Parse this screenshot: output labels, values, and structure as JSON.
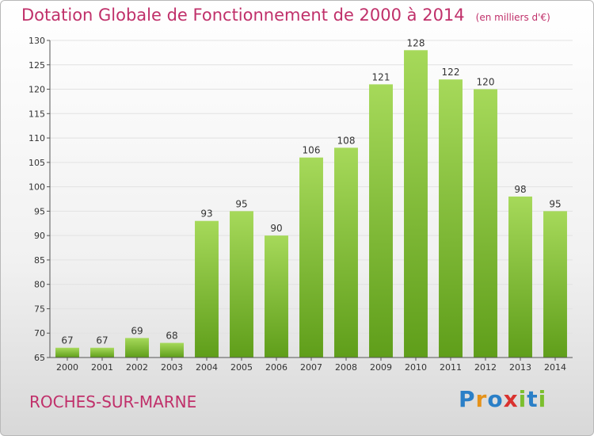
{
  "chart_data": {
    "type": "bar",
    "title": "Dotation Globale de Fonctionnement de 2000 à 2014",
    "subtitle": "(en milliers d'€)",
    "xlabel": "",
    "ylabel": "",
    "categories": [
      "2000",
      "2001",
      "2002",
      "2003",
      "2004",
      "2005",
      "2006",
      "2007",
      "2008",
      "2009",
      "2010",
      "2011",
      "2012",
      "2013",
      "2014"
    ],
    "values": [
      67,
      67,
      69,
      68,
      93,
      95,
      90,
      106,
      108,
      121,
      128,
      122,
      120,
      98,
      95
    ],
    "ylim": [
      65,
      130
    ],
    "yticks": [
      65,
      70,
      75,
      80,
      85,
      90,
      95,
      100,
      105,
      110,
      115,
      120,
      125,
      130
    ],
    "grid": true,
    "bar_color": "#7cbf2e"
  },
  "commune": "ROCHES-SUR-MARNE",
  "logo": {
    "letters": [
      "P",
      "r",
      "o",
      "x",
      "i",
      "t",
      "i"
    ],
    "colors": [
      "#2a7fc7",
      "#e5921a",
      "#2a7fc7",
      "#d9322f",
      "#7cbf2e",
      "#2a7fc7",
      "#7cbf2e"
    ]
  }
}
